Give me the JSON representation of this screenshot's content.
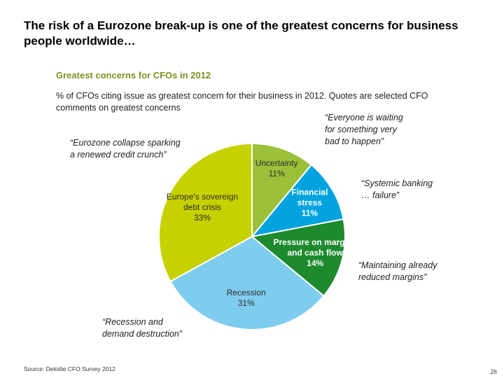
{
  "slide": {
    "title": "The risk of a Eurozone break-up is one of the greatest concerns for business people worldwide…",
    "source": "Source: Deloitte CFO Survey 2012",
    "page_number": "26"
  },
  "quotes": [
    "“Everyone is waiting\nfor something very\nbad to happen”",
    "“Eurozone collapse sparking\na renewed credit crunch”",
    "“Systemic banking\n… failure”",
    "“Maintaining already\nreduced margins”",
    "“Recession and\ndemand destruction”"
  ],
  "chart_data": {
    "type": "pie",
    "title": "Greatest concerns for CFOs in 2012",
    "subtitle": "% of CFOs citing issue as greatest concern for their business in 2012. Quotes are selected CFO comments on greatest concerns",
    "slices": [
      {
        "label": [
          "Uncertainty"
        ],
        "value": 11,
        "value_label": "11%",
        "color": "#9bc03a"
      },
      {
        "label": [
          "Financial",
          "stress"
        ],
        "value": 11,
        "value_label": "11%",
        "color": "#00a3e0"
      },
      {
        "label": [
          "Pressure on margins",
          "and cash flow"
        ],
        "value": 14,
        "value_label": "14%",
        "color": "#1e8a2e"
      },
      {
        "label": [
          "Recession"
        ],
        "value": 31,
        "value_label": "31%",
        "color": "#7fcdee"
      },
      {
        "label": [
          "Europe's sovereign",
          "debt crisis"
        ],
        "value": 33,
        "value_label": "33%",
        "color": "#c6d100"
      }
    ]
  }
}
